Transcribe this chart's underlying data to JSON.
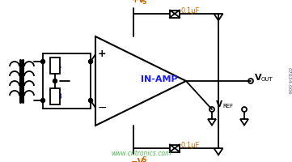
{
  "bg_color": "#ffffff",
  "line_color": "#000000",
  "blue_color": "#1a1aff",
  "orange_color": "#cc6600",
  "green_color": "#33aa33",
  "amp_label": "IN-AMP",
  "cap_label": "0.1μF",
  "watermark": "www.cntronics.com",
  "fig_id": "07034-006",
  "TLX": 118,
  "TRX": 230,
  "TTY": 155,
  "TBY": 45,
  "fig_w": 361,
  "fig_h": 200
}
